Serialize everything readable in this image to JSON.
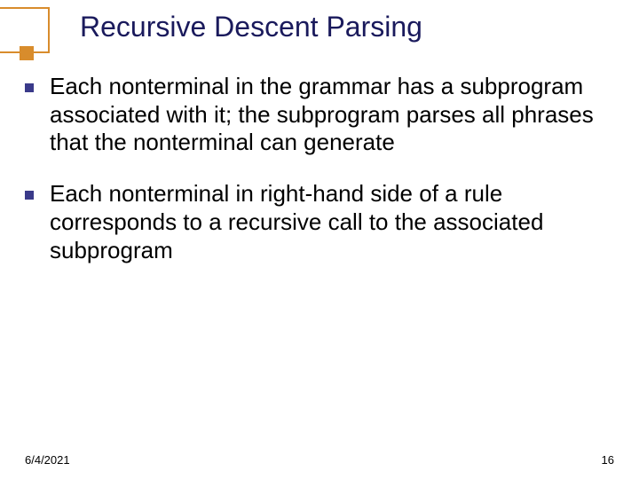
{
  "title": "Recursive Descent Parsing",
  "title_color": "#1a1a5c",
  "title_fontsize": 32,
  "accent_color": "#d88c2c",
  "bullet_color": "#3a3a8a",
  "body_fontsize": 26,
  "body_color": "#000000",
  "background_color": "#ffffff",
  "bullets": [
    "Each nonterminal in the grammar has a subprogram associated with it; the subprogram parses all phrases that the nonterminal can generate",
    "Each nonterminal in right-hand side of a rule corresponds  to a recursive call to the associated subprogram"
  ],
  "footer": {
    "date": "6/4/2021",
    "page": "16"
  }
}
